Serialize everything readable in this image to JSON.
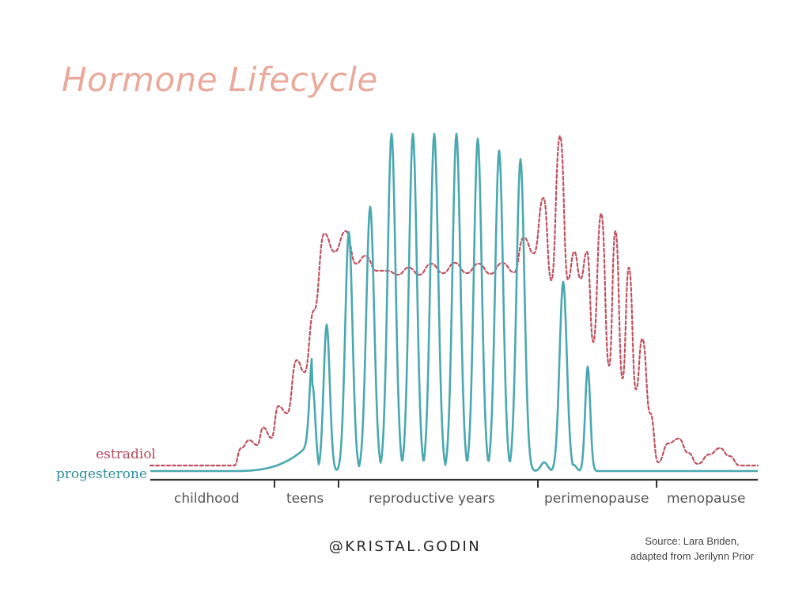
{
  "title": "Hormone Lifecycle",
  "series": {
    "estradiol": {
      "label": "estradiol",
      "color": "#c0505e",
      "style": "dashed"
    },
    "progesterone": {
      "label": "progesterone",
      "color": "#4aa8b0",
      "style": "solid"
    }
  },
  "phases": [
    "childhood",
    "teens",
    "reproductive years",
    "perimenopause",
    "menopause"
  ],
  "handle": "@KRISTAL.GODIN",
  "source_line1": "Source: Lara Briden,",
  "source_line2": "adapted from Jerilynn Prior"
}
